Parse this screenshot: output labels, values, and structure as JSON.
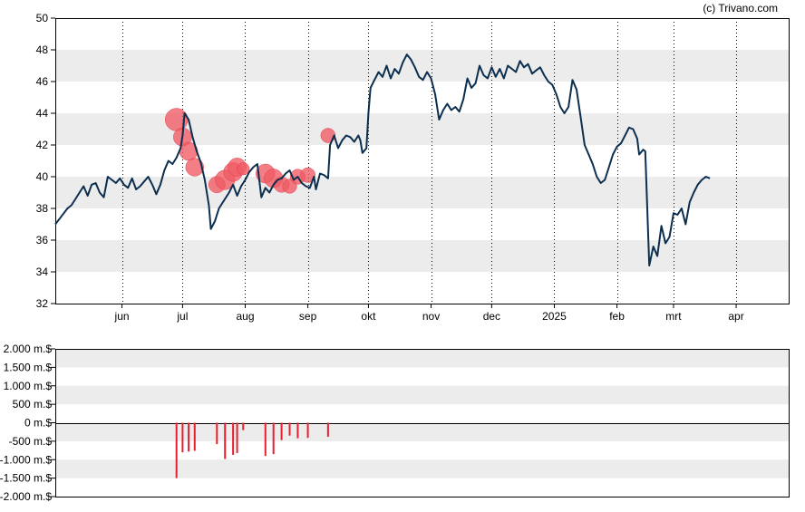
{
  "credit": "(c) Trivano.com",
  "colors": {
    "price_line": "#0d2f4f",
    "band": "#ececec",
    "bubble": "#f05a64",
    "bar": "#e8202e",
    "grid_v": "#000000"
  },
  "chart_data": [
    {
      "type": "line",
      "name": "price-chart",
      "y_ticks": [
        "32",
        "34",
        "36",
        "38",
        "40",
        "42",
        "44",
        "46",
        "48",
        "50"
      ],
      "ylim": [
        32,
        50
      ],
      "x_ticks": [
        "jun",
        "jul",
        "aug",
        "sep",
        "okt",
        "nov",
        "dec",
        "2025",
        "feb",
        "mrt",
        "apr"
      ],
      "x_tick_days": [
        33,
        63,
        94,
        125,
        155,
        186,
        216,
        247,
        278,
        306,
        337
      ],
      "xlim_days": [
        0,
        363
      ],
      "grid": "vertical dotted at month starts, horizontal alternating bands",
      "price_points": [
        [
          0,
          37.0
        ],
        [
          3,
          37.5
        ],
        [
          6,
          38.0
        ],
        [
          8,
          38.2
        ],
        [
          10,
          38.6
        ],
        [
          12,
          39.0
        ],
        [
          14,
          39.4
        ],
        [
          16,
          38.8
        ],
        [
          18,
          39.5
        ],
        [
          20,
          39.6
        ],
        [
          22,
          39.0
        ],
        [
          24,
          38.7
        ],
        [
          26,
          40.0
        ],
        [
          28,
          39.8
        ],
        [
          30,
          39.6
        ],
        [
          32,
          39.9
        ],
        [
          34,
          39.5
        ],
        [
          36,
          39.3
        ],
        [
          38,
          39.9
        ],
        [
          40,
          39.2
        ],
        [
          42,
          39.4
        ],
        [
          44,
          39.7
        ],
        [
          46,
          40.0
        ],
        [
          48,
          39.5
        ],
        [
          50,
          38.9
        ],
        [
          52,
          39.5
        ],
        [
          54,
          40.4
        ],
        [
          56,
          41.0
        ],
        [
          58,
          40.8
        ],
        [
          60,
          41.2
        ],
        [
          62,
          41.8
        ],
        [
          63,
          42.6
        ],
        [
          64,
          44.0
        ],
        [
          66,
          43.6
        ],
        [
          68,
          42.5
        ],
        [
          70,
          41.6
        ],
        [
          72,
          40.9
        ],
        [
          74,
          39.8
        ],
        [
          76,
          38.2
        ],
        [
          77,
          36.7
        ],
        [
          79,
          37.2
        ],
        [
          81,
          38.0
        ],
        [
          84,
          38.6
        ],
        [
          86,
          39.0
        ],
        [
          88,
          39.5
        ],
        [
          90,
          38.8
        ],
        [
          92,
          39.4
        ],
        [
          94,
          39.8
        ],
        [
          96,
          40.3
        ],
        [
          98,
          40.6
        ],
        [
          100,
          40.8
        ],
        [
          102,
          38.7
        ],
        [
          104,
          39.3
        ],
        [
          106,
          39.0
        ],
        [
          108,
          39.5
        ],
        [
          110,
          39.8
        ],
        [
          112,
          39.9
        ],
        [
          114,
          40.2
        ],
        [
          116,
          40.4
        ],
        [
          118,
          39.8
        ],
        [
          120,
          40.0
        ],
        [
          122,
          39.6
        ],
        [
          124,
          39.4
        ],
        [
          126,
          39.3
        ],
        [
          128,
          40.0
        ],
        [
          129,
          39.2
        ],
        [
          131,
          40.2
        ],
        [
          133,
          40.1
        ],
        [
          135,
          39.9
        ],
        [
          136,
          42.0
        ],
        [
          138,
          42.6
        ],
        [
          140,
          41.8
        ],
        [
          142,
          42.3
        ],
        [
          144,
          42.6
        ],
        [
          146,
          42.5
        ],
        [
          148,
          42.2
        ],
        [
          150,
          42.6
        ],
        [
          151,
          42.3
        ],
        [
          152,
          41.5
        ],
        [
          154,
          41.8
        ],
        [
          155,
          44.0
        ],
        [
          156,
          45.6
        ],
        [
          158,
          46.1
        ],
        [
          160,
          46.6
        ],
        [
          162,
          46.3
        ],
        [
          164,
          47.0
        ],
        [
          166,
          46.2
        ],
        [
          168,
          46.8
        ],
        [
          170,
          46.5
        ],
        [
          172,
          47.2
        ],
        [
          174,
          47.7
        ],
        [
          176,
          47.4
        ],
        [
          178,
          46.9
        ],
        [
          180,
          46.3
        ],
        [
          182,
          46.1
        ],
        [
          184,
          46.6
        ],
        [
          186,
          46.2
        ],
        [
          188,
          45.2
        ],
        [
          190,
          43.6
        ],
        [
          192,
          44.2
        ],
        [
          194,
          44.6
        ],
        [
          196,
          44.2
        ],
        [
          198,
          44.4
        ],
        [
          200,
          44.1
        ],
        [
          202,
          44.9
        ],
        [
          204,
          46.2
        ],
        [
          206,
          45.6
        ],
        [
          208,
          45.9
        ],
        [
          210,
          47.0
        ],
        [
          212,
          46.4
        ],
        [
          214,
          46.2
        ],
        [
          216,
          46.9
        ],
        [
          218,
          46.3
        ],
        [
          220,
          46.8
        ],
        [
          222,
          46.2
        ],
        [
          224,
          47.0
        ],
        [
          226,
          46.8
        ],
        [
          228,
          46.6
        ],
        [
          230,
          47.3
        ],
        [
          232,
          46.9
        ],
        [
          234,
          47.1
        ],
        [
          236,
          46.5
        ],
        [
          238,
          46.7
        ],
        [
          240,
          46.9
        ],
        [
          242,
          46.4
        ],
        [
          244,
          46.0
        ],
        [
          246,
          45.8
        ],
        [
          248,
          45.2
        ],
        [
          250,
          44.4
        ],
        [
          252,
          44.0
        ],
        [
          254,
          44.4
        ],
        [
          256,
          46.1
        ],
        [
          258,
          45.5
        ],
        [
          260,
          43.8
        ],
        [
          262,
          42.0
        ],
        [
          264,
          41.4
        ],
        [
          266,
          40.8
        ],
        [
          268,
          40.0
        ],
        [
          270,
          39.6
        ],
        [
          272,
          39.8
        ],
        [
          274,
          40.6
        ],
        [
          276,
          41.4
        ],
        [
          278,
          41.9
        ],
        [
          280,
          42.1
        ],
        [
          282,
          42.6
        ],
        [
          284,
          43.1
        ],
        [
          286,
          43.0
        ],
        [
          288,
          42.4
        ],
        [
          289,
          41.4
        ],
        [
          291,
          41.7
        ],
        [
          292,
          41.6
        ],
        [
          294,
          34.4
        ],
        [
          296,
          35.6
        ],
        [
          298,
          35.0
        ],
        [
          300,
          36.9
        ],
        [
          302,
          35.8
        ],
        [
          304,
          36.2
        ],
        [
          306,
          37.7
        ],
        [
          308,
          37.6
        ],
        [
          310,
          38.0
        ],
        [
          312,
          37.0
        ],
        [
          314,
          38.4
        ],
        [
          316,
          39.0
        ],
        [
          318,
          39.5
        ],
        [
          320,
          39.8
        ],
        [
          322,
          40.0
        ],
        [
          324,
          39.9
        ]
      ],
      "bubbles": [
        {
          "day": 60,
          "value": 43.6,
          "size": 1500
        },
        {
          "day": 63,
          "value": 42.5,
          "size": 800
        },
        {
          "day": 66,
          "value": 41.6,
          "size": 780
        },
        {
          "day": 69,
          "value": 40.6,
          "size": 760
        },
        {
          "day": 80,
          "value": 39.5,
          "size": 580
        },
        {
          "day": 84,
          "value": 39.8,
          "size": 980
        },
        {
          "day": 88,
          "value": 40.3,
          "size": 870
        },
        {
          "day": 90,
          "value": 40.6,
          "size": 820
        },
        {
          "day": 93,
          "value": 40.5,
          "size": 200
        },
        {
          "day": 104,
          "value": 40.2,
          "size": 900
        },
        {
          "day": 108,
          "value": 39.9,
          "size": 850
        },
        {
          "day": 112,
          "value": 39.5,
          "size": 470
        },
        {
          "day": 116,
          "value": 39.4,
          "size": 350
        },
        {
          "day": 120,
          "value": 40.0,
          "size": 420
        },
        {
          "day": 125,
          "value": 40.1,
          "size": 410
        },
        {
          "day": 135,
          "value": 42.6,
          "size": 380
        }
      ]
    },
    {
      "type": "bar",
      "name": "volume-chart",
      "y_ticks": [
        "-2.000 m.$",
        "-1.500 m.$",
        "-1.000 m.$",
        "-500 m.$",
        "0 m.$",
        "500 m.$",
        "1.000 m.$",
        "1.500 m.$",
        "2.000 m.$"
      ],
      "ylim": [
        -2000,
        2000
      ],
      "bars": [
        {
          "day": 60,
          "value": -1500
        },
        {
          "day": 63,
          "value": -800
        },
        {
          "day": 66,
          "value": -780
        },
        {
          "day": 69,
          "value": -760
        },
        {
          "day": 80,
          "value": -580
        },
        {
          "day": 84,
          "value": -980
        },
        {
          "day": 88,
          "value": -870
        },
        {
          "day": 90,
          "value": -820
        },
        {
          "day": 93,
          "value": -200
        },
        {
          "day": 104,
          "value": -900
        },
        {
          "day": 108,
          "value": -850
        },
        {
          "day": 112,
          "value": -470
        },
        {
          "day": 116,
          "value": -350
        },
        {
          "day": 120,
          "value": -420
        },
        {
          "day": 125,
          "value": -410
        },
        {
          "day": 135,
          "value": -380
        }
      ]
    }
  ]
}
